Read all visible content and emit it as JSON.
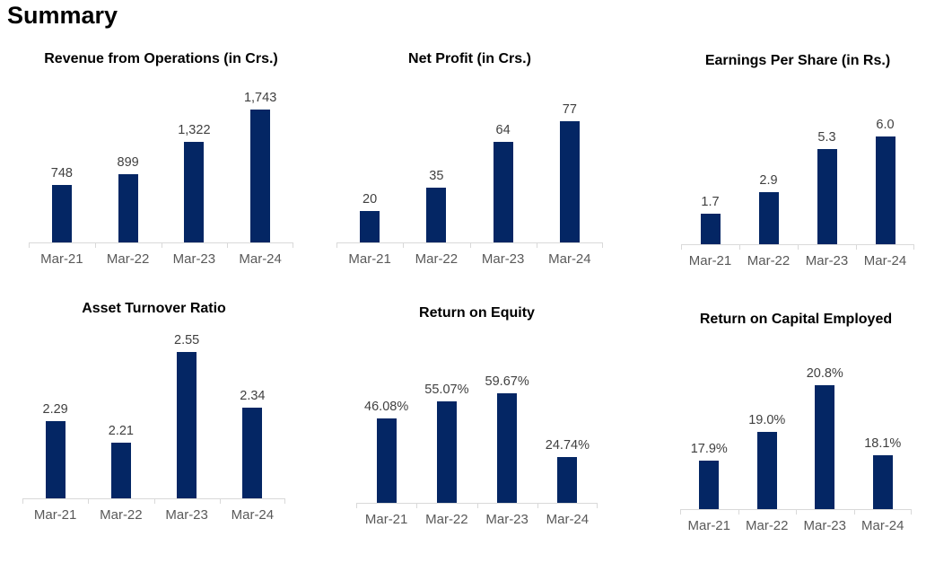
{
  "page": {
    "title": "Summary"
  },
  "colors": {
    "bar": "#042664",
    "value_label": "#404040",
    "axis_label": "#595959",
    "axis_line": "#d9d9d9",
    "chart_title": "#000000",
    "background": "#ffffff"
  },
  "chart_data": [
    {
      "type": "bar",
      "title": "Revenue from Operations (in Crs.)",
      "categories": [
        "Mar-21",
        "Mar-22",
        "Mar-23",
        "Mar-24"
      ],
      "values": [
        748,
        899,
        1322,
        1743
      ],
      "labels": [
        "748",
        "899",
        "1,322",
        "1,743"
      ],
      "ylim": [
        0,
        2000
      ],
      "grid": false,
      "legend": false,
      "y_axis_visible": false
    },
    {
      "type": "bar",
      "title": "Net Profit (in Crs.)",
      "categories": [
        "Mar-21",
        "Mar-22",
        "Mar-23",
        "Mar-24"
      ],
      "values": [
        20,
        35,
        64,
        77
      ],
      "labels": [
        "20",
        "35",
        "64",
        "77"
      ],
      "ylim": [
        0,
        80
      ],
      "grid": false,
      "legend": false,
      "y_axis_visible": false
    },
    {
      "type": "bar",
      "title": "Earnings Per Share (in Rs.)",
      "categories": [
        "Mar-21",
        "Mar-22",
        "Mar-23",
        "Mar-24"
      ],
      "values": [
        1.7,
        2.9,
        5.3,
        6.0
      ],
      "labels": [
        "1.7",
        "2.9",
        "5.3",
        "6.0"
      ],
      "ylim": [
        0,
        7
      ],
      "grid": false,
      "legend": false,
      "y_axis_visible": false
    },
    {
      "type": "bar",
      "title": "Asset Turnover Ratio",
      "categories": [
        "Mar-21",
        "Mar-22",
        "Mar-23",
        "Mar-24"
      ],
      "values": [
        2.29,
        2.21,
        2.55,
        2.34
      ],
      "labels": [
        "2.29",
        "2.21",
        "2.55",
        "2.34"
      ],
      "ylim": [
        2.0,
        2.6
      ],
      "grid": false,
      "legend": false,
      "y_axis_visible": false
    },
    {
      "type": "bar",
      "title": "Return on Equity",
      "categories": [
        "Mar-21",
        "Mar-22",
        "Mar-23",
        "Mar-24"
      ],
      "values": [
        46.08,
        55.07,
        59.67,
        24.74
      ],
      "labels": [
        "46.08%",
        "55.07%",
        "59.67%",
        "24.74%"
      ],
      "ylim": [
        0,
        70
      ],
      "grid": false,
      "legend": false,
      "y_axis_visible": false
    },
    {
      "type": "bar",
      "title": "Return on Capital Employed",
      "categories": [
        "Mar-21",
        "Mar-22",
        "Mar-23",
        "Mar-24"
      ],
      "values": [
        17.9,
        19.0,
        20.8,
        18.1
      ],
      "labels": [
        "17.9%",
        "19.0%",
        "20.8%",
        "18.1%"
      ],
      "ylim": [
        16,
        22
      ],
      "grid": false,
      "legend": false,
      "y_axis_visible": false
    }
  ]
}
